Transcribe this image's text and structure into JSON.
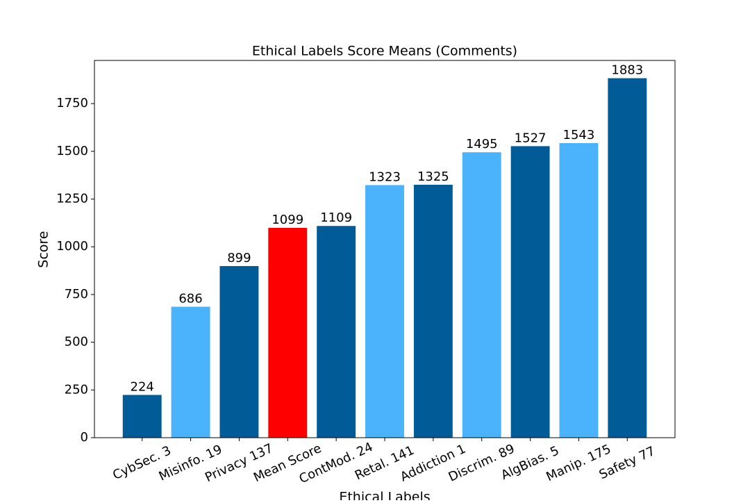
{
  "chart_data": {
    "type": "bar",
    "title": "Ethical Labels Score Means (Comments)",
    "x_label": "Ethical Labels",
    "y_label": "Score",
    "categories": [
      "CybSec. 3",
      "Misinfo. 19",
      "Privacy 137",
      "Mean Score",
      "ContMod. 24",
      "Retal. 141",
      "Addiction 1",
      "Discrim. 89",
      "AlgBias. 5",
      "Manip. 175",
      "Safety 77"
    ],
    "values": [
      224,
      686,
      899,
      1099,
      1109,
      1323,
      1325,
      1495,
      1527,
      1543,
      1883
    ],
    "colors": [
      "#005b96",
      "#4ab3fc",
      "#005b96",
      "#ff0000",
      "#005b96",
      "#4ab3fc",
      "#005b96",
      "#4ab3fc",
      "#005b96",
      "#4ab3fc",
      "#005b96"
    ],
    "ylim": [
      0,
      1976
    ],
    "yticks": [
      0,
      250,
      500,
      750,
      1000,
      1250,
      1500,
      1750
    ],
    "grid": false
  }
}
